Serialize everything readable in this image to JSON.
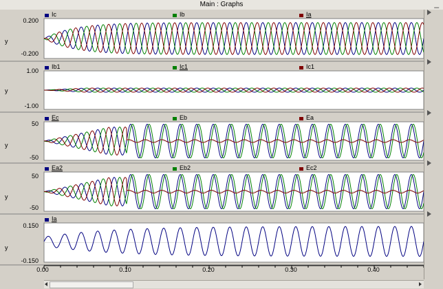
{
  "window": {
    "title": "Main : Graphs"
  },
  "colors": {
    "blue": "#000080",
    "green": "#008000",
    "red": "#800000"
  },
  "x_axis": {
    "ticks": [
      "0.00",
      "0.10",
      "0.20",
      "0.30",
      "0.40"
    ],
    "range": [
      0,
      0.46
    ]
  },
  "chart_data": [
    {
      "type": "line",
      "ylabel": "y",
      "yticks": [
        "0.200",
        "-0.200"
      ],
      "ylim": [
        -0.25,
        0.25
      ],
      "series": [
        {
          "name": "Ic",
          "color": "#000080"
        },
        {
          "name": "Ib",
          "color": "#008000"
        },
        {
          "name": "Ia",
          "color": "#800000"
        }
      ]
    },
    {
      "type": "line",
      "ylabel": "y",
      "yticks": [
        "1.00",
        "-1.00"
      ],
      "ylim": [
        -1.2,
        1.2
      ],
      "series": [
        {
          "name": "Ib1",
          "color": "#000080"
        },
        {
          "name": "Ic1",
          "color": "#008000"
        },
        {
          "name": "Ic1",
          "color": "#800000"
        }
      ]
    },
    {
      "type": "line",
      "ylabel": "y",
      "yticks": [
        "50",
        "-50"
      ],
      "ylim": [
        -55,
        55
      ],
      "series": [
        {
          "name": "Ec",
          "color": "#000080"
        },
        {
          "name": "Eb",
          "color": "#008000"
        },
        {
          "name": "Ea",
          "color": "#800000"
        }
      ]
    },
    {
      "type": "line",
      "ylabel": "y",
      "yticks": [
        "50",
        "-50"
      ],
      "ylim": [
        -55,
        55
      ],
      "series": [
        {
          "name": "Ea2",
          "color": "#000080"
        },
        {
          "name": "Eb2",
          "color": "#008000"
        },
        {
          "name": "Ec2",
          "color": "#800000"
        }
      ]
    },
    {
      "type": "line",
      "ylabel": "y",
      "yticks": [
        "0.150",
        "-0.150"
      ],
      "ylim": [
        -0.17,
        0.17
      ],
      "series": [
        {
          "name": "Ia",
          "color": "#000080"
        }
      ]
    }
  ]
}
